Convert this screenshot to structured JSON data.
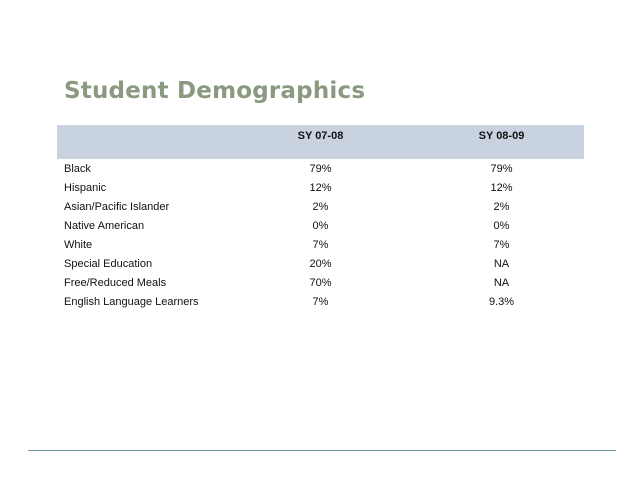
{
  "title": "Student Demographics",
  "table": {
    "headers": [
      "",
      "SY 07-08",
      "SY 08-09"
    ],
    "rows": [
      {
        "label": "Black",
        "sy0708": "79%",
        "sy0809": "79%"
      },
      {
        "label": "Hispanic",
        "sy0708": "12%",
        "sy0809": "12%"
      },
      {
        "label": "Asian/Pacific Islander",
        "sy0708": "2%",
        "sy0809": "2%"
      },
      {
        "label": "Native American",
        "sy0708": "0%",
        "sy0809": "0%"
      },
      {
        "label": "White",
        "sy0708": "7%",
        "sy0809": "7%"
      },
      {
        "label": "Special Education",
        "sy0708": "20%",
        "sy0809": "NA"
      },
      {
        "label": "Free/Reduced Meals",
        "sy0708": "70%",
        "sy0809": "NA"
      },
      {
        "label": "English Language Learners",
        "sy0708": "7%",
        "sy0809": "9.3%"
      }
    ]
  },
  "colors": {
    "title": "#8a9a80",
    "header_band": "#c9d3e0",
    "bottom_rule": "#6e95a8"
  }
}
